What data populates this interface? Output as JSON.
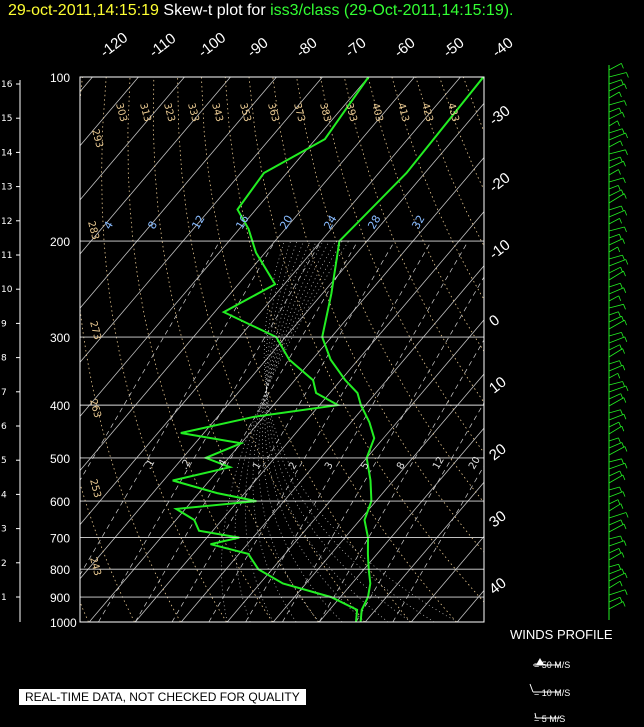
{
  "header": {
    "timestamp": "29-oct-2011,14:15:19",
    "title_prefix": "Skew-t plot for",
    "station": "iss3/class",
    "title_paren": "(29-Oct-2011,14:15:19)."
  },
  "winds": {
    "title": "WINDS PROFILE",
    "legend": [
      "= 50 M/S",
      "= 10 M/S",
      "= 5 M/S"
    ]
  },
  "notice": "REAL-TIME DATA, NOT CHECKED FOR QUALITY",
  "colors": {
    "background": "#000000",
    "timestamp": "#ffff33",
    "highlight": "#33ff33",
    "trace": "#22ee22",
    "grid": "#ffffff",
    "dry_adiabat": "#e8c890",
    "mixing_ratio": "#88bbff",
    "moist_adiabat": "#ffffff"
  },
  "chart_data": {
    "type": "line",
    "subtype": "skew-t log-p",
    "pressure_levels_hpa": [
      100,
      200,
      300,
      400,
      500,
      600,
      700,
      800,
      900,
      1000
    ],
    "height_km_ticks": [
      "1",
      "2",
      "3",
      "4",
      "5",
      "6",
      "7",
      "8",
      "9",
      "10",
      "11",
      "12",
      "13",
      "14",
      "15",
      "16"
    ],
    "top_temperature_labels": [
      "-120",
      "-110",
      "-100",
      "-90",
      "-80",
      "-70",
      "-60",
      "-50",
      "-40"
    ],
    "right_temperature_labels": [
      "-30",
      "-20",
      "-10",
      "0",
      "10",
      "20",
      "30",
      "40"
    ],
    "dry_adiabat_labels": [
      "293",
      "303",
      "313",
      "323",
      "333",
      "343",
      "353",
      "363",
      "373",
      "383",
      "393",
      "403",
      "413",
      "423",
      "433",
      "283",
      "273",
      "263",
      "253",
      "243"
    ],
    "mixing_ratio_labels": [
      "4",
      "8",
      "12",
      "16",
      "20",
      "24",
      "28",
      "32"
    ],
    "lower_mixing_labels": [
      ".1",
      ".2",
      ".4",
      "1",
      "2",
      "3",
      "5",
      "8",
      "12",
      "20"
    ],
    "ylim": [
      1000,
      100
    ],
    "y_scale": "log",
    "grid": true,
    "series": [
      {
        "name": "",
        "points": [
          [
            100,
            -55
          ],
          [
            150,
            -54
          ],
          [
            200,
            -56
          ],
          [
            250,
            -48
          ],
          [
            300,
            -42
          ],
          [
            330,
            -36
          ],
          [
            360,
            -29
          ],
          [
            380,
            -24
          ],
          [
            400,
            -21
          ],
          [
            430,
            -16
          ],
          [
            460,
            -12
          ],
          [
            500,
            -10
          ],
          [
            550,
            -5
          ],
          [
            600,
            -1
          ],
          [
            650,
            1
          ],
          [
            700,
            5
          ],
          [
            750,
            8
          ],
          [
            800,
            11
          ],
          [
            850,
            14
          ],
          [
            900,
            16
          ],
          [
            950,
            17
          ],
          [
            1000,
            19
          ]
        ]
      },
      {
        "name": "",
        "points": [
          [
            100,
            -80
          ],
          [
            130,
            -78
          ],
          [
            150,
            -85
          ],
          [
            175,
            -84
          ],
          [
            190,
            -78
          ],
          [
            210,
            -72
          ],
          [
            240,
            -62
          ],
          [
            270,
            -68
          ],
          [
            300,
            -52
          ],
          [
            330,
            -45
          ],
          [
            360,
            -36
          ],
          [
            380,
            -33
          ],
          [
            400,
            -26
          ],
          [
            420,
            -42
          ],
          [
            450,
            -55
          ],
          [
            470,
            -40
          ],
          [
            500,
            -45
          ],
          [
            520,
            -38
          ],
          [
            550,
            -48
          ],
          [
            580,
            -36
          ],
          [
            600,
            -26
          ],
          [
            620,
            -42
          ],
          [
            650,
            -36
          ],
          [
            680,
            -33
          ],
          [
            700,
            -23
          ],
          [
            720,
            -28
          ],
          [
            750,
            -18
          ],
          [
            800,
            -13
          ],
          [
            850,
            -5
          ],
          [
            900,
            8
          ],
          [
            950,
            16
          ],
          [
            1000,
            18
          ]
        ]
      }
    ]
  }
}
